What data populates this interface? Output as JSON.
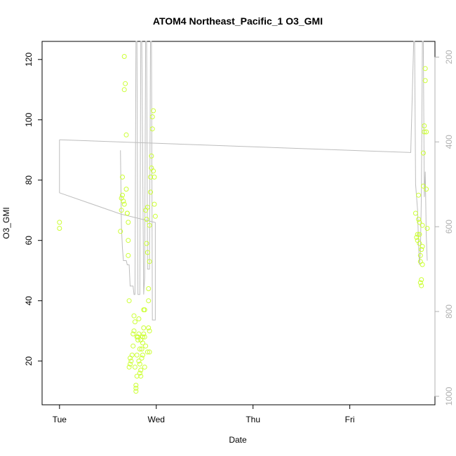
{
  "chart_data": {
    "type": "scatter",
    "title": "ATOM4 Northeast_Pacific_1 O3_GMI",
    "xlabel": "Date",
    "ylabel": "O3_GMI",
    "x_ticks": [
      "Tue",
      "Wed",
      "Thu",
      "Fri"
    ],
    "x_tick_values": [
      0,
      1,
      2,
      3
    ],
    "xlim": [
      -0.18,
      3.88
    ],
    "ylim": [
      5.5,
      126
    ],
    "y_ticks": [
      20,
      40,
      60,
      80,
      100,
      120
    ],
    "y2_ticks": [
      200,
      400,
      600,
      800,
      1000
    ],
    "y2lim": [
      1020,
      163
    ],
    "grid": false,
    "point_color": "#ccff33",
    "line_color": "#bdbdbd",
    "series": [
      {
        "type": "points",
        "points": [
          [
            0.0,
            66
          ],
          [
            0.0,
            64
          ],
          [
            0.63,
            63
          ],
          [
            0.64,
            74
          ],
          [
            0.64,
            70
          ],
          [
            0.65,
            75
          ],
          [
            0.65,
            81
          ],
          [
            0.66,
            73
          ],
          [
            0.67,
            72
          ],
          [
            0.67,
            110
          ],
          [
            0.67,
            121
          ],
          [
            0.68,
            112
          ],
          [
            0.69,
            95
          ],
          [
            0.69,
            77
          ],
          [
            0.7,
            69
          ],
          [
            0.7,
            69
          ],
          [
            0.71,
            66
          ],
          [
            0.71,
            60
          ],
          [
            0.71,
            55
          ],
          [
            0.72,
            40
          ],
          [
            0.72,
            18
          ],
          [
            0.73,
            19
          ],
          [
            0.73,
            21
          ],
          [
            0.74,
            20
          ],
          [
            0.75,
            22
          ],
          [
            0.76,
            25
          ],
          [
            0.76,
            29
          ],
          [
            0.77,
            30
          ],
          [
            0.77,
            35
          ],
          [
            0.78,
            33
          ],
          [
            0.78,
            18
          ],
          [
            0.79,
            12
          ],
          [
            0.79,
            11
          ],
          [
            0.79,
            10
          ],
          [
            0.8,
            15
          ],
          [
            0.8,
            22
          ],
          [
            0.81,
            28
          ],
          [
            0.81,
            27
          ],
          [
            0.82,
            34
          ],
          [
            0.82,
            20
          ],
          [
            0.83,
            19
          ],
          [
            0.83,
            16
          ],
          [
            0.84,
            15
          ],
          [
            0.84,
            17
          ],
          [
            0.85,
            21
          ],
          [
            0.85,
            24
          ],
          [
            0.86,
            28
          ],
          [
            0.86,
            26
          ],
          [
            0.87,
            29
          ],
          [
            0.87,
            31
          ],
          [
            0.87,
            37
          ],
          [
            0.88,
            37
          ],
          [
            0.88,
            28
          ],
          [
            0.89,
            25
          ],
          [
            0.89,
            70
          ],
          [
            0.9,
            59
          ],
          [
            0.9,
            67
          ],
          [
            0.91,
            71
          ],
          [
            0.91,
            56
          ],
          [
            0.92,
            44
          ],
          [
            0.92,
            40
          ],
          [
            0.92,
            31
          ],
          [
            0.93,
            30
          ],
          [
            0.93,
            65
          ],
          [
            0.93,
            53
          ],
          [
            0.94,
            76
          ],
          [
            0.94,
            81
          ],
          [
            0.95,
            84
          ],
          [
            0.95,
            88
          ],
          [
            0.96,
            97
          ],
          [
            0.96,
            101
          ],
          [
            0.97,
            103
          ],
          [
            0.97,
            83
          ],
          [
            0.98,
            81
          ],
          [
            0.98,
            72
          ],
          [
            0.99,
            68
          ],
          [
            0.88,
            18
          ],
          [
            0.86,
            22
          ],
          [
            0.84,
            27
          ],
          [
            0.82,
            29
          ],
          [
            0.91,
            23
          ],
          [
            0.93,
            23
          ],
          [
            0.83,
            24
          ],
          [
            0.8,
            28
          ],
          [
            3.68,
            69
          ],
          [
            3.69,
            61
          ],
          [
            3.7,
            60
          ],
          [
            3.7,
            62
          ],
          [
            3.71,
            67
          ],
          [
            3.71,
            75
          ],
          [
            3.72,
            66
          ],
          [
            3.72,
            62
          ],
          [
            3.73,
            55
          ],
          [
            3.73,
            53
          ],
          [
            3.73,
            46
          ],
          [
            3.74,
            47
          ],
          [
            3.74,
            45
          ],
          [
            3.75,
            52
          ],
          [
            3.75,
            58
          ],
          [
            3.75,
            65
          ],
          [
            3.76,
            78
          ],
          [
            3.76,
            89
          ],
          [
            3.77,
            96
          ],
          [
            3.77,
            98
          ],
          [
            3.78,
            113
          ],
          [
            3.78,
            117
          ],
          [
            3.79,
            77
          ],
          [
            3.79,
            96
          ],
          [
            3.8,
            64
          ],
          [
            3.74,
            57
          ],
          [
            3.72,
            59
          ]
        ]
      },
      {
        "type": "line",
        "axis": "y2",
        "points": [
          [
            0.0,
            395
          ],
          [
            3.63,
            425
          ],
          [
            3.66,
            163
          ],
          [
            3.67,
            163
          ],
          [
            3.68,
            500
          ],
          [
            3.7,
            560
          ],
          [
            3.71,
            640
          ],
          [
            3.72,
            690
          ],
          [
            3.73,
            660
          ],
          [
            3.74,
            520
          ],
          [
            3.75,
            163
          ],
          [
            3.76,
            163
          ],
          [
            3.77,
            530
          ],
          [
            3.78,
            470
          ],
          [
            3.79,
            620
          ],
          [
            3.8,
            680
          ]
        ]
      },
      {
        "type": "line",
        "axis": "y2",
        "points": [
          [
            0.0,
            395
          ],
          [
            0.0,
            520
          ],
          [
            0.63,
            570
          ],
          [
            0.99,
            590
          ],
          [
            0.99,
            820
          ],
          [
            0.96,
            820
          ],
          [
            0.95,
            163
          ],
          [
            0.94,
            163
          ],
          [
            0.93,
            700
          ],
          [
            0.91,
            700
          ],
          [
            0.9,
            163
          ],
          [
            0.89,
            163
          ],
          [
            0.88,
            720
          ],
          [
            0.87,
            760
          ],
          [
            0.85,
            163
          ],
          [
            0.84,
            163
          ],
          [
            0.83,
            760
          ],
          [
            0.81,
            760
          ],
          [
            0.8,
            163
          ],
          [
            0.79,
            163
          ],
          [
            0.78,
            760
          ],
          [
            0.77,
            760
          ],
          [
            0.76,
            740
          ],
          [
            0.73,
            740
          ],
          [
            0.72,
            690
          ],
          [
            0.7,
            690
          ],
          [
            0.69,
            680
          ],
          [
            0.66,
            680
          ],
          [
            0.65,
            650
          ],
          [
            0.64,
            600
          ],
          [
            0.63,
            420
          ]
        ]
      }
    ]
  }
}
